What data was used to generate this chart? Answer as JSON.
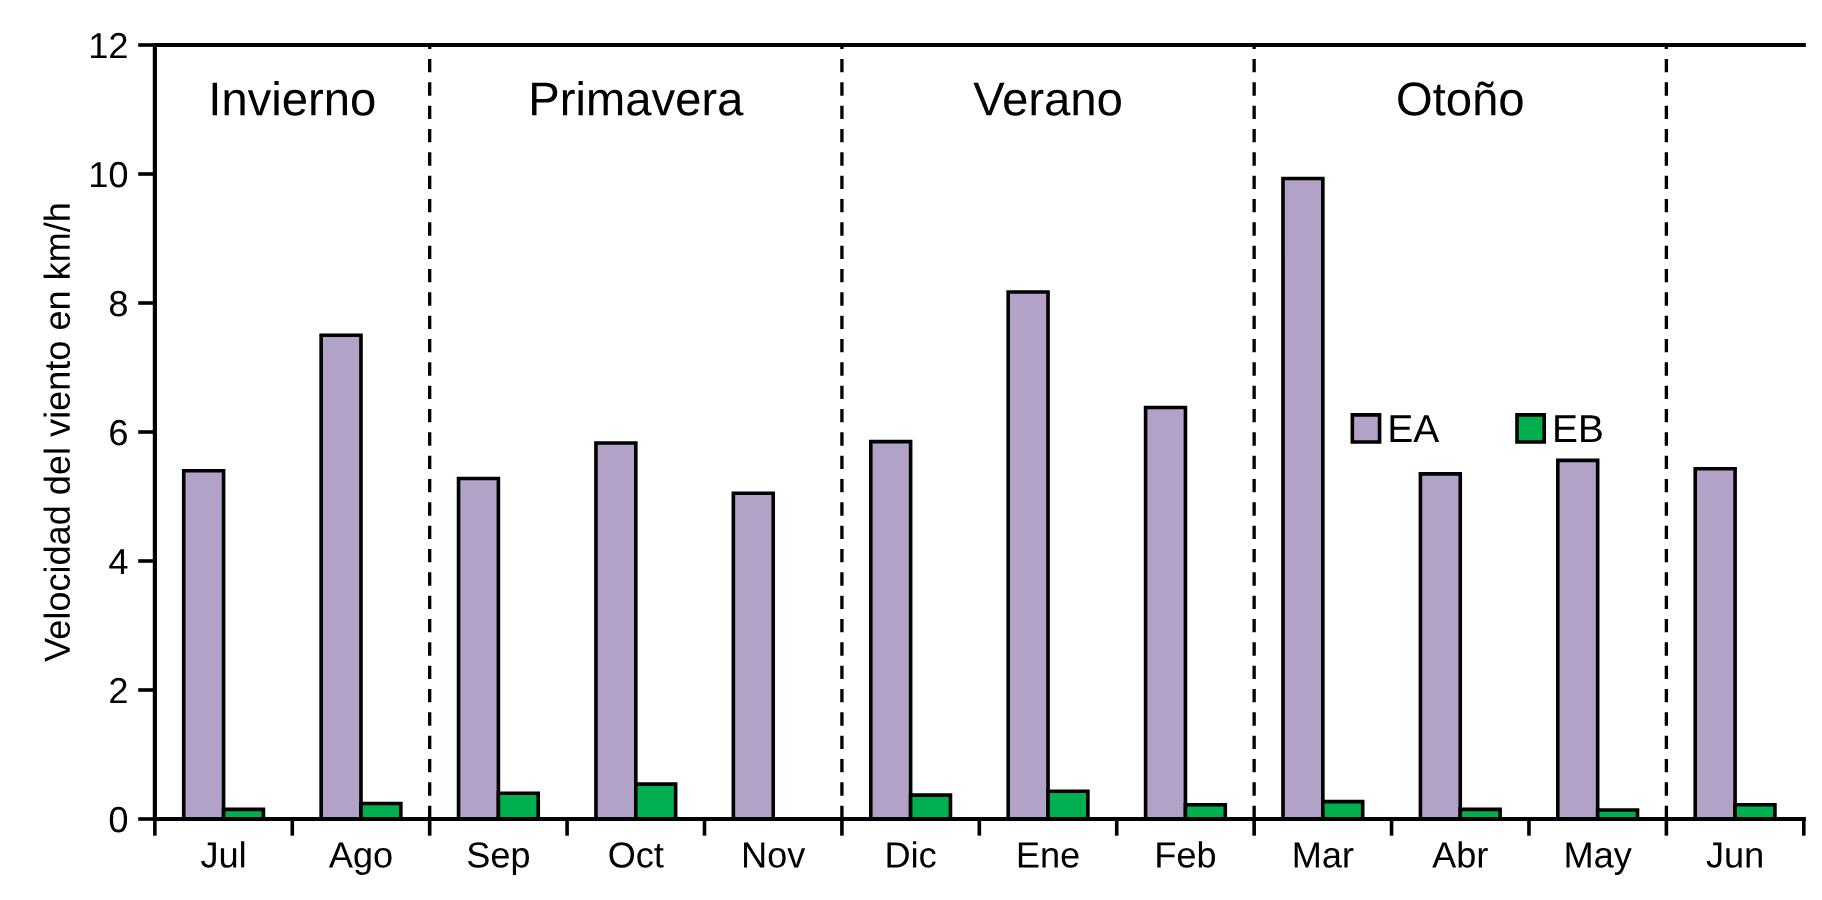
{
  "chart_data": {
    "type": "bar",
    "ylabel": "Velocidad del viento en km/h",
    "categories": [
      "Jul",
      "Ago",
      "Sep",
      "Oct",
      "Nov",
      "Dic",
      "Ene",
      "Feb",
      "Mar",
      "Abr",
      "May",
      "Jun"
    ],
    "series": [
      {
        "name": "EA",
        "color": "#b3a2c7",
        "values": [
          5.4,
          7.5,
          5.28,
          5.83,
          5.05,
          5.85,
          8.17,
          6.38,
          9.93,
          5.35,
          5.56,
          5.43
        ]
      },
      {
        "name": "EB",
        "color": "#00b050",
        "values": [
          0.15,
          0.24,
          0.4,
          0.54,
          null,
          0.37,
          0.43,
          0.22,
          0.27,
          0.15,
          0.14,
          0.22
        ]
      }
    ],
    "ylim": [
      0,
      12
    ],
    "yticks": [
      0,
      2,
      4,
      6,
      8,
      10,
      12
    ],
    "annotations": [
      "Invierno",
      "Primavera",
      "Verano",
      "Otoño"
    ],
    "legend": "right",
    "grid": false
  }
}
